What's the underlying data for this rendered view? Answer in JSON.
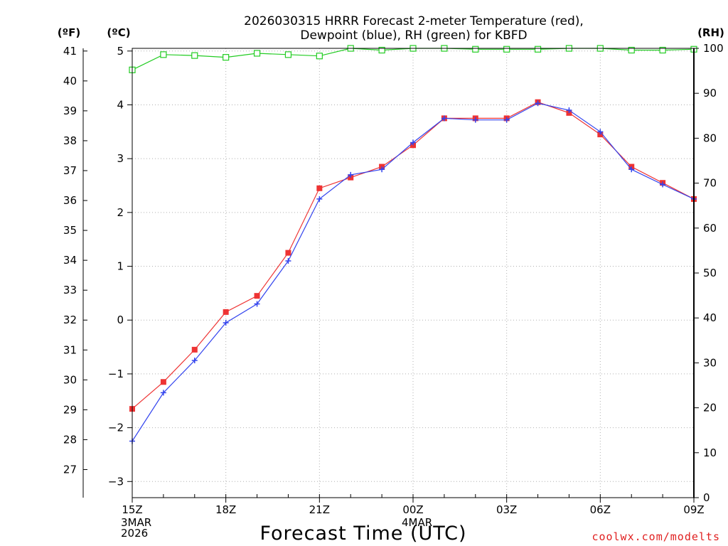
{
  "chart_data": {
    "type": "line",
    "title": [
      "2026030315 HRRR Forecast 2-meter Temperature (red),",
      "Dewpoint (blue), RH (green) for KBFD"
    ],
    "xlabel": "Forecast Time (UTC)",
    "units": {
      "left_f": "(ºF)",
      "left_c": "(ºC)",
      "right": "(RH)"
    },
    "credit": "coolwx.com/modelts",
    "x_ticks": [
      {
        "hour": 0,
        "label": "15Z",
        "sub": [
          "3MAR",
          "2026"
        ]
      },
      {
        "hour": 3,
        "label": "18Z",
        "sub": []
      },
      {
        "hour": 6,
        "label": "21Z",
        "sub": []
      },
      {
        "hour": 9,
        "label": "00Z",
        "sub": [
          "4MAR"
        ]
      },
      {
        "hour": 12,
        "label": "03Z",
        "sub": []
      },
      {
        "hour": 15,
        "label": "06Z",
        "sub": []
      },
      {
        "hour": 18,
        "label": "09Z",
        "sub": []
      }
    ],
    "xlim": [
      0,
      18
    ],
    "celsius_ylim": [
      -3.3,
      5.05
    ],
    "celsius_ticks": [
      -3,
      -2,
      -1,
      0,
      1,
      2,
      3,
      4,
      5
    ],
    "fahrenheit_ticks": [
      27,
      28,
      29,
      30,
      31,
      32,
      33,
      34,
      35,
      36,
      37,
      38,
      39,
      40,
      41
    ],
    "rh_ylim": [
      0,
      100
    ],
    "rh_ticks": [
      0,
      10,
      20,
      30,
      40,
      50,
      60,
      70,
      80,
      90,
      100
    ],
    "grid": true,
    "series": [
      {
        "name": "Temperature",
        "axis": "celsius",
        "color": "#ee3333",
        "marker": "filled-square",
        "x": [
          0,
          1,
          2,
          3,
          4,
          5,
          6,
          7,
          8,
          9,
          10,
          11,
          12,
          13,
          14,
          15,
          16,
          17,
          18
        ],
        "y": [
          -1.65,
          -1.15,
          -0.55,
          0.15,
          0.45,
          1.25,
          2.45,
          2.65,
          2.85,
          3.25,
          3.75,
          3.75,
          3.75,
          4.05,
          3.85,
          3.45,
          2.85,
          2.55,
          2.25
        ]
      },
      {
        "name": "Dewpoint",
        "axis": "celsius",
        "color": "#3344ee",
        "marker": "plus",
        "x": [
          0,
          1,
          2,
          3,
          4,
          5,
          6,
          7,
          8,
          9,
          10,
          11,
          12,
          13,
          14,
          15,
          16,
          17,
          18
        ],
        "y": [
          -2.25,
          -1.35,
          -0.75,
          -0.05,
          0.3,
          1.1,
          2.25,
          2.7,
          2.8,
          3.3,
          3.75,
          3.72,
          3.72,
          4.03,
          3.9,
          3.5,
          2.8,
          2.52,
          2.25
        ]
      },
      {
        "name": "RH",
        "axis": "rh",
        "color": "#22cc22",
        "marker": "open-square",
        "x": [
          0,
          1,
          2,
          3,
          4,
          5,
          6,
          7,
          8,
          9,
          10,
          11,
          12,
          13,
          14,
          15,
          16,
          17,
          18
        ],
        "y": [
          95.2,
          98.6,
          98.4,
          98.0,
          98.9,
          98.6,
          98.3,
          100,
          99.6,
          100,
          100,
          99.8,
          99.8,
          99.8,
          100,
          100,
          99.6,
          99.6,
          99.8
        ]
      }
    ]
  }
}
